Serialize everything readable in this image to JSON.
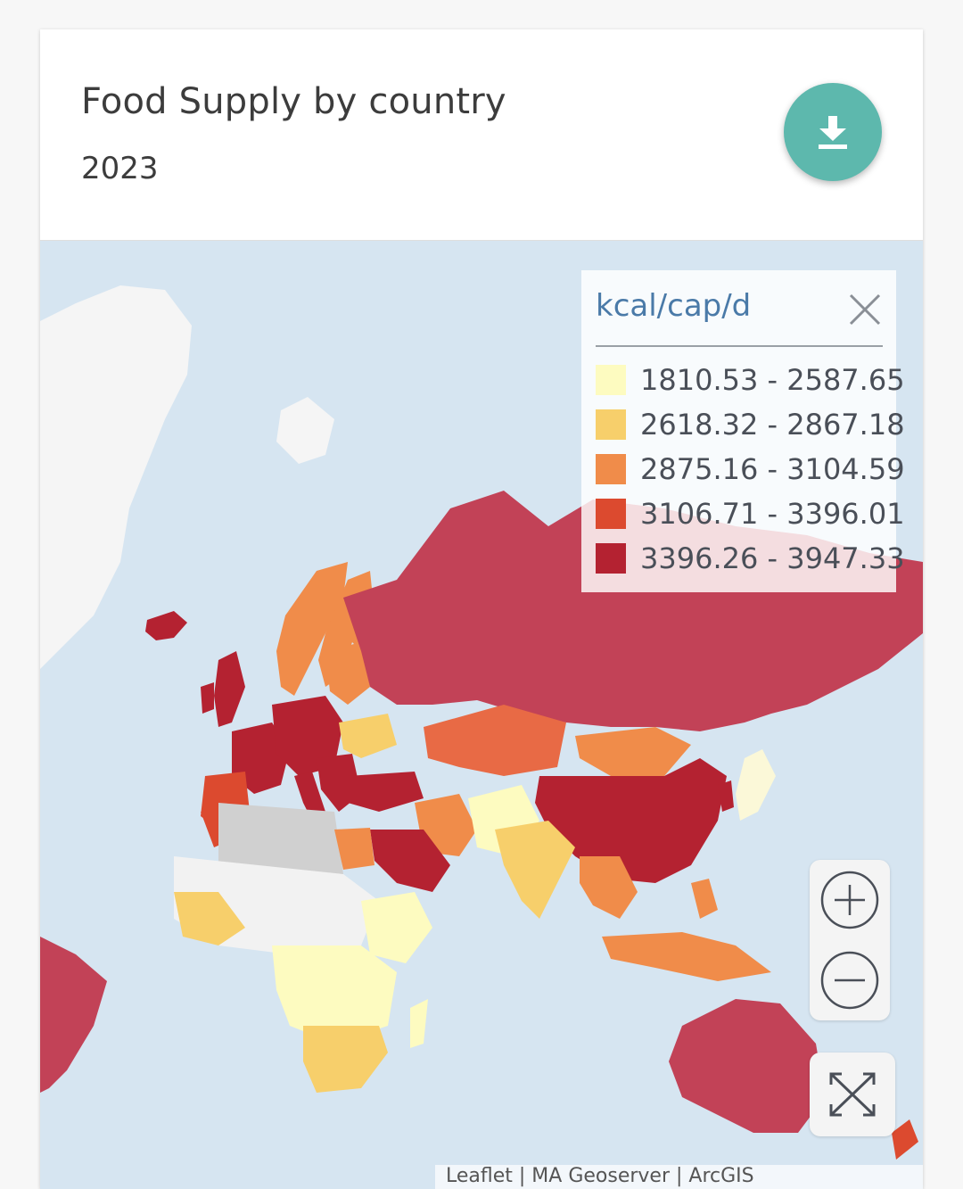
{
  "header": {
    "title": "Food Supply by country",
    "subtitle": "2023",
    "download_icon": "download-icon",
    "download_color": "#5db8ad"
  },
  "legend": {
    "title": "kcal/cap/d",
    "close_icon": "close-icon",
    "bins": [
      {
        "label": "1810.53 - 2587.65",
        "color": "#fdfbc0"
      },
      {
        "label": "2618.32 - 2867.18",
        "color": "#f7cf6b"
      },
      {
        "label": "2875.16 - 3104.59",
        "color": "#f08c4a"
      },
      {
        "label": "3106.71 - 3396.01",
        "color": "#dc4a2f"
      },
      {
        "label": "3396.26 - 3947.33",
        "color": "#b42231"
      }
    ]
  },
  "map": {
    "ocean_color": "#d6e5f1",
    "land_no_data_color": "#f2f2f2",
    "missing_color": "#d0d0d0",
    "controls": {
      "zoom_in_icon": "plus-circle-icon",
      "zoom_out_icon": "minus-circle-icon",
      "fullscreen_icon": "expand-icon"
    },
    "attribution": "Leaflet | MA Geoserver | ArcGIS"
  }
}
